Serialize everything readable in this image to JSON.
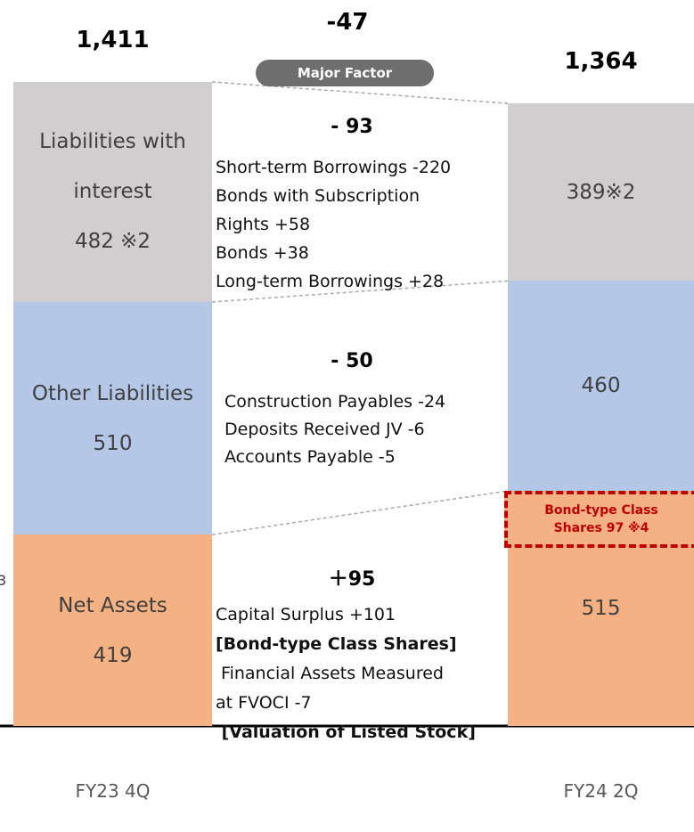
{
  "chart_data": {
    "type": "stacked-bar",
    "categories": [
      "FY23 4Q",
      "FY24 2Q"
    ],
    "series": [
      {
        "name": "Net Assets",
        "color": "#f4b183",
        "values": [
          419,
          515
        ]
      },
      {
        "name": "Other Liabilities",
        "color": "#b4c7e7",
        "values": [
          510,
          460
        ]
      },
      {
        "name": "Liabilities with interest",
        "color": "#d0cece",
        "values": [
          482,
          389
        ],
        "value_labels": [
          "482 ※2",
          "389※2"
        ]
      }
    ],
    "totals": [
      1411,
      1364
    ],
    "total_labels": [
      "1,411",
      "1,364"
    ],
    "difference": {
      "value": -47,
      "label": "-47"
    },
    "factor_title": "Major Factor",
    "factors": [
      {
        "value": -93,
        "label": "- 93",
        "lines": [
          {
            "text": "Short-term Borrowings -220",
            "bold": false
          },
          {
            "text": "Bonds with Subscription",
            "bold": false
          },
          {
            "text": "Rights +58",
            "bold": false
          },
          {
            "text": "Bonds +38",
            "bold": false
          },
          {
            "text": "Long-term Borrowings +28",
            "bold": false
          }
        ]
      },
      {
        "value": -50,
        "label": "- 50",
        "lines": [
          {
            "text": "Construction Payables -24",
            "bold": false
          },
          {
            "text": "Deposits Received JV -6",
            "bold": false
          },
          {
            "text": "Accounts Payable -5",
            "bold": false
          }
        ]
      },
      {
        "value": 95,
        "label": "＋95",
        "lines": [
          {
            "text": "Capital Surplus +101",
            "bold": false
          },
          {
            "text": "[Bond-type Class Shares]",
            "bold": true
          },
          {
            "text": " Financial Assets Measured",
            "bold": false
          },
          {
            "text": "at FVOCI -7",
            "bold": false
          },
          {
            "text": " [Valuation of Listed Stock]",
            "bold": true
          }
        ]
      }
    ],
    "highlight": {
      "value": 97,
      "label": "Bond-type Class Shares 97 ※4",
      "color": "#c00000"
    },
    "edge_fragment": "3"
  }
}
